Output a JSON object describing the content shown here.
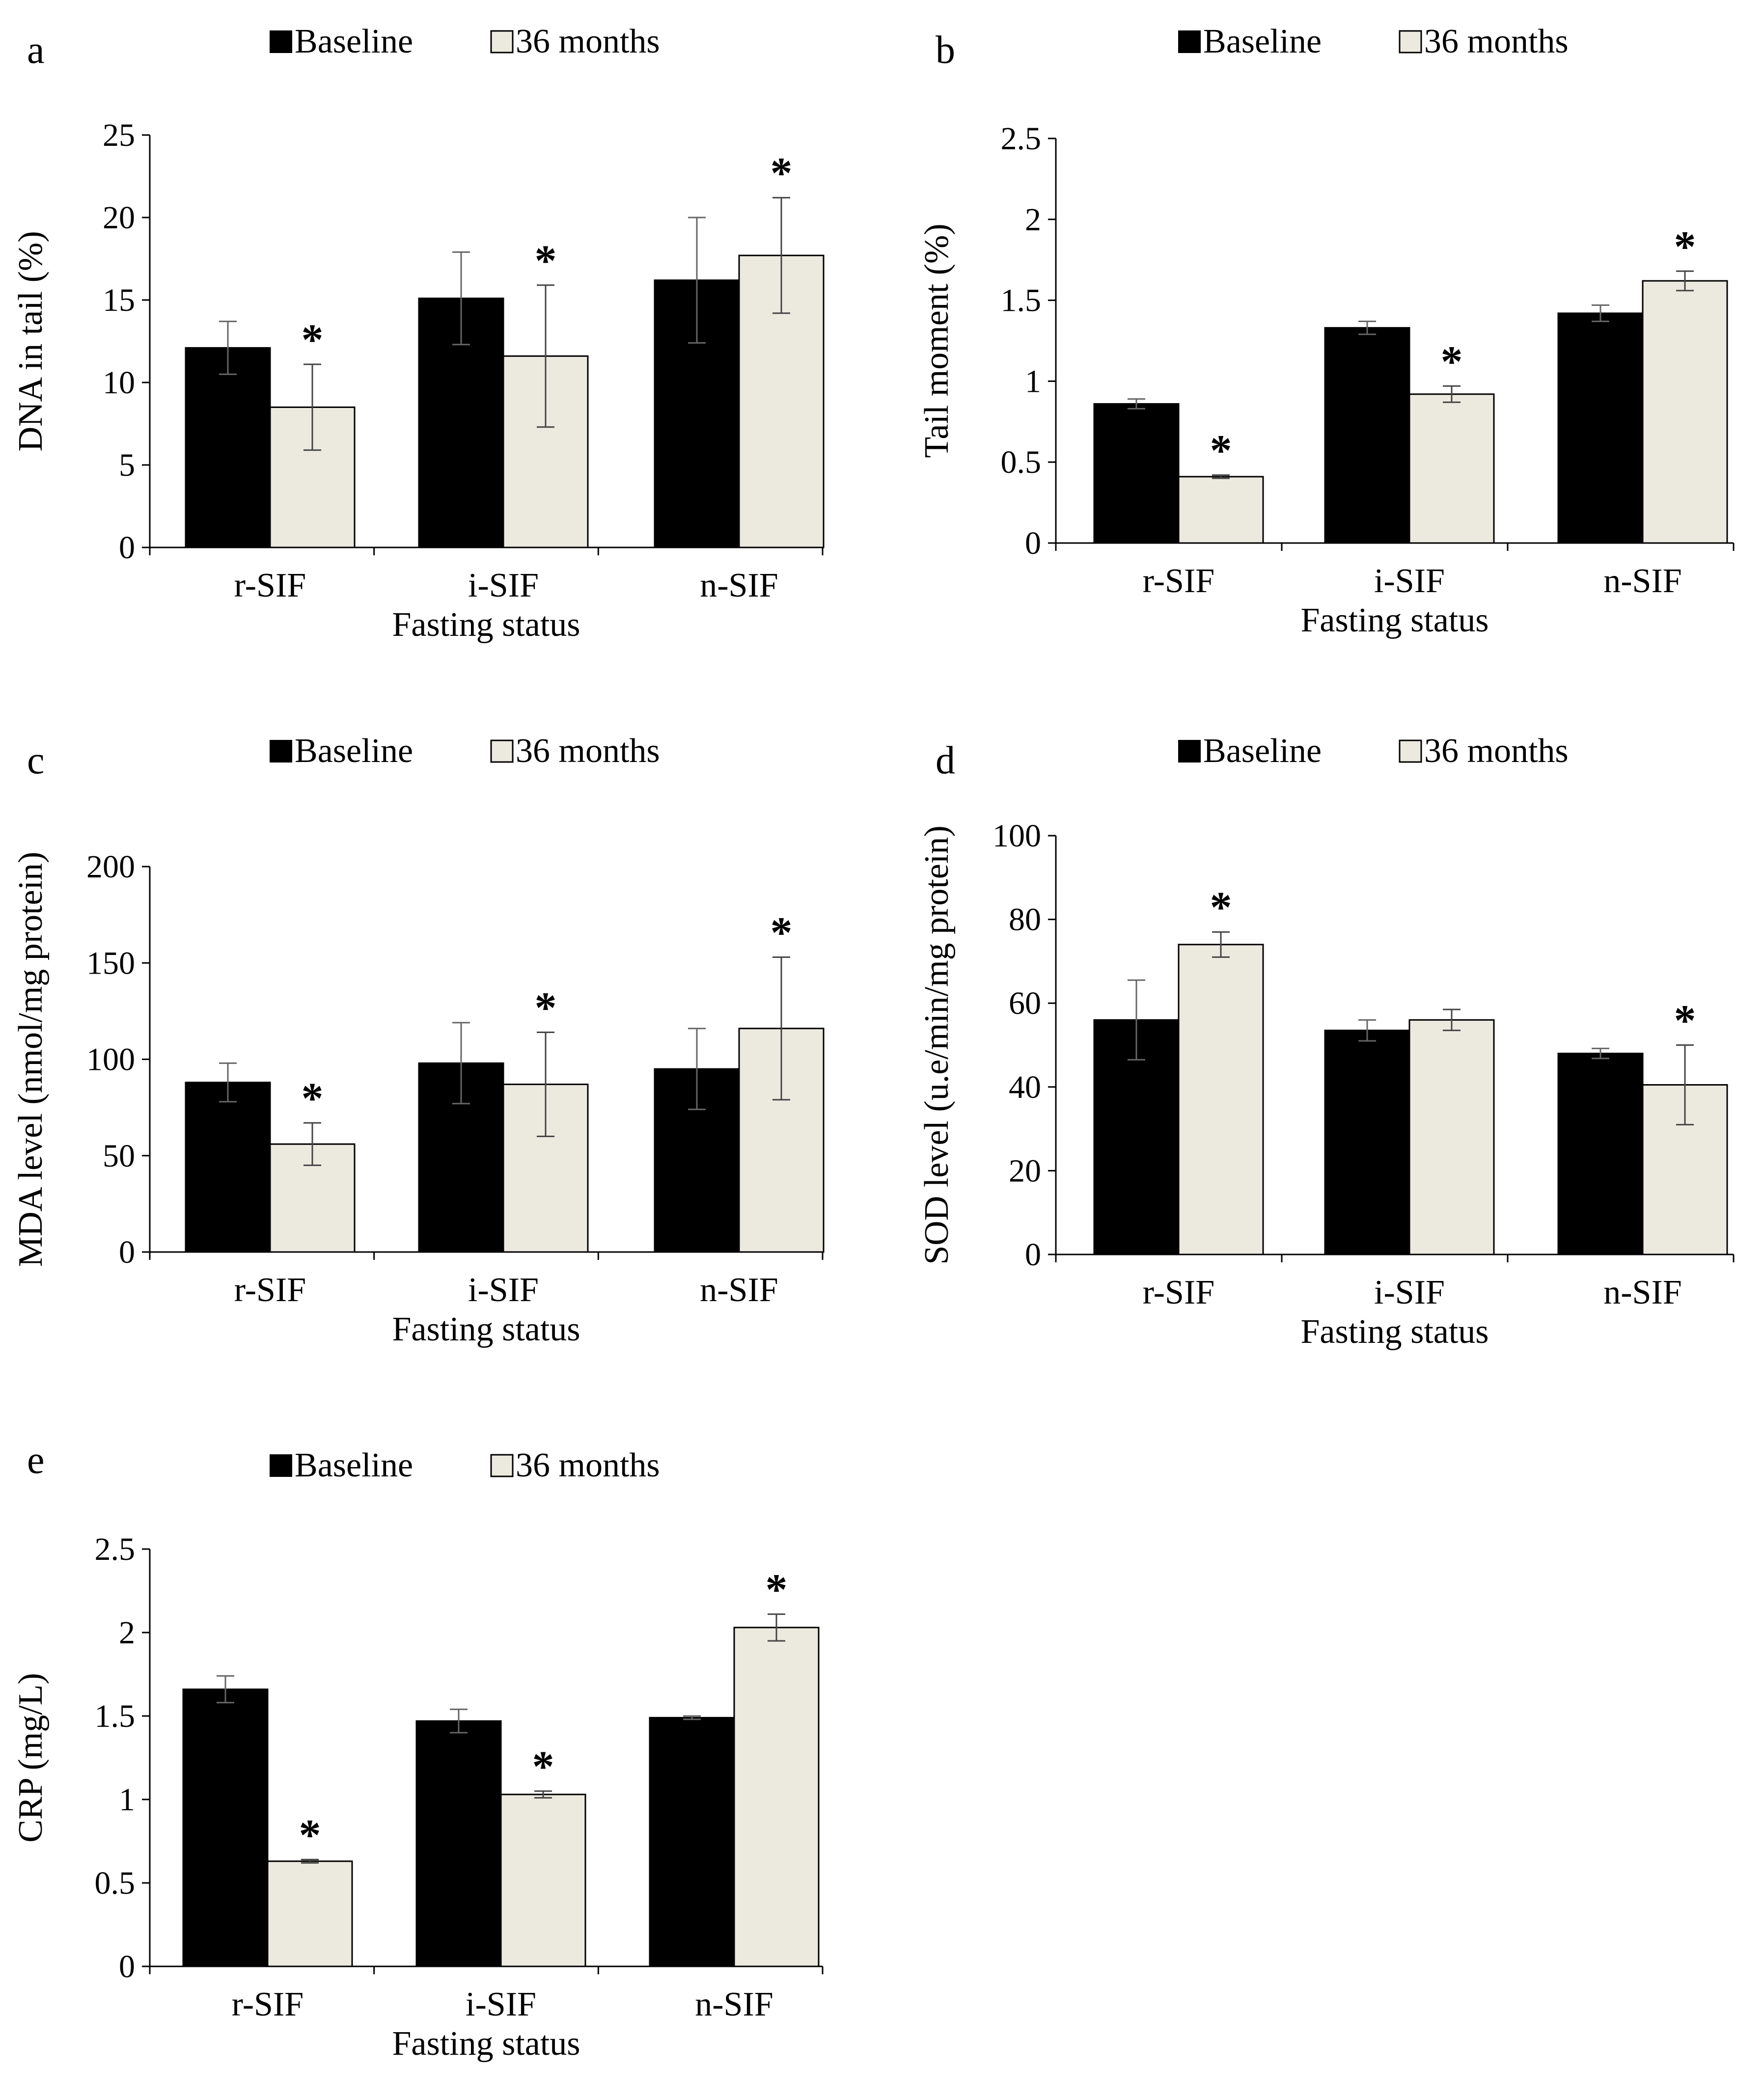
{
  "legend": {
    "series1": "Baseline",
    "series2": "36 months"
  },
  "colors": {
    "baseline": "#000000",
    "followup": "#ece9df",
    "axis": "#000000",
    "errorbar": "#444444"
  },
  "chart_data": [
    {
      "panel": "a",
      "type": "bar",
      "title": "",
      "categories": [
        "r-SIF",
        "i-SIF",
        "n-SIF"
      ],
      "xlabel": "Fasting status",
      "ylabel": "DNA in tail (%)",
      "ylim": [
        0,
        25
      ],
      "yticks": [
        "0",
        "5",
        "10",
        "15",
        "20",
        "25"
      ],
      "legend_position": "top-center",
      "series": [
        {
          "name": "Baseline",
          "values": [
            12.1,
            15.1,
            16.2
          ],
          "errors": [
            1.6,
            2.8,
            3.8
          ],
          "stars": [
            false,
            false,
            false
          ]
        },
        {
          "name": "36 months",
          "values": [
            8.5,
            11.6,
            17.7
          ],
          "errors": [
            2.6,
            4.3,
            3.5
          ],
          "stars": [
            true,
            true,
            true
          ]
        }
      ]
    },
    {
      "panel": "b",
      "type": "bar",
      "title": "",
      "categories": [
        "r-SIF",
        "i-SIF",
        "n-SIF"
      ],
      "xlabel": "Fasting status",
      "ylabel": "Tail moment (%)",
      "ylim": [
        0,
        2.5
      ],
      "yticks": [
        "0",
        "0.5",
        "1",
        "1.5",
        "2",
        "2.5"
      ],
      "legend_position": "top-center",
      "series": [
        {
          "name": "Baseline",
          "values": [
            0.86,
            1.33,
            1.42
          ],
          "errors": [
            0.03,
            0.04,
            0.05
          ],
          "stars": [
            false,
            false,
            false
          ]
        },
        {
          "name": "36 months",
          "values": [
            0.41,
            0.92,
            1.62
          ],
          "errors": [
            0.01,
            0.05,
            0.06
          ],
          "stars": [
            true,
            true,
            true
          ]
        }
      ]
    },
    {
      "panel": "c",
      "type": "bar",
      "title": "",
      "categories": [
        "r-SIF",
        "i-SIF",
        "n-SIF"
      ],
      "xlabel": "Fasting status",
      "ylabel": "MDA level (nmol/mg protein)",
      "ylim": [
        0,
        200
      ],
      "yticks": [
        "0",
        "50",
        "100",
        "150",
        "200"
      ],
      "legend_position": "top-center",
      "series": [
        {
          "name": "Baseline",
          "values": [
            88,
            98,
            95
          ],
          "errors": [
            10,
            21,
            21
          ],
          "stars": [
            false,
            false,
            false
          ]
        },
        {
          "name": "36 months",
          "values": [
            56,
            87,
            116
          ],
          "errors": [
            11,
            27,
            37
          ],
          "stars": [
            true,
            true,
            true
          ]
        }
      ]
    },
    {
      "panel": "d",
      "type": "bar",
      "title": "",
      "categories": [
        "r-SIF",
        "i-SIF",
        "n-SIF"
      ],
      "xlabel": "Fasting status",
      "ylabel": "SOD level (u.e/min/mg protein)",
      "ylim": [
        0,
        100
      ],
      "yticks": [
        "0",
        "20",
        "40",
        "60",
        "80",
        "100"
      ],
      "legend_position": "top-center",
      "series": [
        {
          "name": "Baseline",
          "values": [
            56,
            53.5,
            48
          ],
          "errors": [
            9.5,
            2.5,
            1.2
          ],
          "stars": [
            false,
            false,
            false
          ]
        },
        {
          "name": "36 months",
          "values": [
            74,
            56,
            40.5
          ],
          "errors": [
            3,
            2.5,
            9.5
          ],
          "stars": [
            true,
            false,
            true
          ]
        }
      ]
    },
    {
      "panel": "e",
      "type": "bar",
      "title": "",
      "categories": [
        "r-SIF",
        "i-SIF",
        "n-SIF"
      ],
      "xlabel": "Fasting status",
      "ylabel": "CRP (mg/L)",
      "ylim": [
        0,
        2.5
      ],
      "yticks": [
        "0",
        "0.5",
        "1",
        "1.5",
        "2",
        "2.5"
      ],
      "legend_position": "top-center",
      "series": [
        {
          "name": "Baseline",
          "values": [
            1.66,
            1.47,
            1.49
          ],
          "errors": [
            0.08,
            0.07,
            0.01
          ],
          "stars": [
            false,
            false,
            false
          ]
        },
        {
          "name": "36 months",
          "values": [
            0.63,
            1.03,
            2.03
          ],
          "errors": [
            0.01,
            0.02,
            0.08
          ],
          "stars": [
            true,
            true,
            true
          ]
        }
      ]
    }
  ]
}
